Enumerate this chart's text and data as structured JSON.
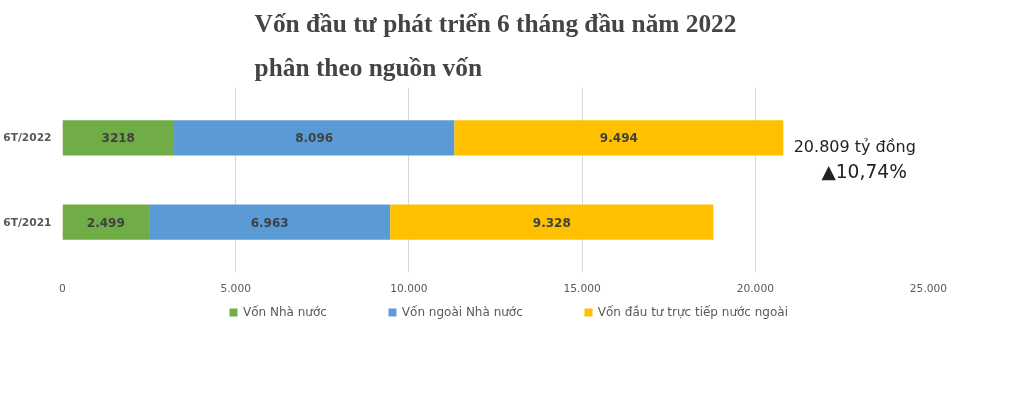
{
  "chart_data": {
    "type": "bar",
    "orientation": "horizontal",
    "stacked": true,
    "title": "Vốn đầu tư phát triển 6 tháng đầu năm 2022\nphân theo nguồn vốn",
    "categories": [
      "6T/2022",
      "6T/2021"
    ],
    "series": [
      {
        "name": "Vốn Nhà nước",
        "color": "#70ad47",
        "values": [
          3218,
          2499
        ],
        "value_labels": [
          "3218",
          "2.499"
        ]
      },
      {
        "name": "Vốn ngoài Nhà nước",
        "color": "#5b9bd5",
        "values": [
          8096,
          6963
        ],
        "value_labels": [
          "8.096",
          "6.963"
        ]
      },
      {
        "name": "Vốn đầu tư trực tiếp nước ngoài",
        "color": "#ffc000",
        "values": [
          9494,
          9328
        ],
        "value_labels": [
          "9.494",
          "9.328"
        ]
      }
    ],
    "xlim": [
      0,
      25000
    ],
    "xticks": [
      0,
      {
        "value": 5000,
        "label": "5.000"
      },
      {
        "value": 10000,
        "label": "10.000"
      },
      {
        "value": 15000,
        "label": "15.000"
      },
      {
        "value": 20000,
        "label": "20.000"
      },
      {
        "value": 25000,
        "label": "25.000"
      }
    ],
    "grid": "x",
    "legend": "bottom",
    "annotations": [
      "20.809 tỷ đồng",
      "▲10,74%"
    ]
  }
}
